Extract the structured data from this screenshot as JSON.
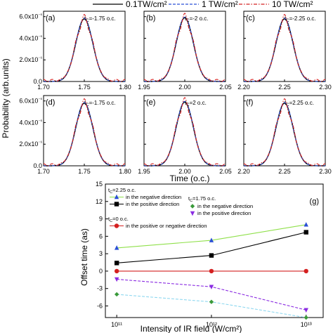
{
  "chart_data": [
    {
      "type": "line",
      "panel_grid": {
        "legend": [
          {
            "name": "0.1TW/cm²",
            "color": "#000000",
            "dash": "solid"
          },
          {
            "name": "1 TW/cm²",
            "color": "#2b4fd6",
            "dash": "dashed"
          },
          {
            "name": "10 TW/cm²",
            "color": "#d42020",
            "dash": "dashdot"
          }
        ],
        "legend_placement": "top",
        "ylabel": "Probability (arb.units)",
        "xlabel": "Time (o.c.)",
        "ylim": [
          0,
          6.5e-06
        ],
        "yticks_top": [
          "0.0",
          "2.0x10⁻⁶",
          "4.0x10⁻⁶",
          "6.0x10⁻⁶"
        ],
        "yticks_bottom": [
          "0.0",
          "2.0x10⁻⁶",
          "4.0x10⁻⁶",
          "6.0x10⁻⁶"
        ]
      },
      "panels": [
        {
          "label": "(a)",
          "annotation": "tC=-1.75 o.c.",
          "center": 1.75,
          "xlim": [
            1.7,
            1.8
          ],
          "xticks": [
            "1.70",
            "1.75",
            "1.80"
          ],
          "peak": 5.8e-06
        },
        {
          "label": "(b)",
          "annotation": "tC=-2 o.c.",
          "center": 2.0,
          "xlim": [
            1.95,
            2.05
          ],
          "xticks": [
            "1.95",
            "2.00",
            "2.05"
          ],
          "peak": 5.9e-06
        },
        {
          "label": "(c)",
          "annotation": "tC=-2.25 o.c.",
          "center": 2.25,
          "xlim": [
            2.2,
            2.3
          ],
          "xticks": [
            "2.20",
            "2.25",
            "2.30"
          ],
          "peak": 5.8e-06
        },
        {
          "label": "(d)",
          "annotation": "tC=-1.75 o.c.",
          "center": 1.75,
          "xlim": [
            1.7,
            1.8
          ],
          "xticks": [
            "1.70",
            "1.75",
            "1.80"
          ],
          "peak": 5.8e-06
        },
        {
          "label": "(e)",
          "annotation": "tC=2 o.c.",
          "center": 2.0,
          "xlim": [
            1.95,
            2.05
          ],
          "xticks": [
            "1.95",
            "2.00",
            "2.05"
          ],
          "peak": 5.9e-06
        },
        {
          "label": "(f)",
          "annotation": "tC=2.25 o.c.",
          "center": 2.25,
          "xlim": [
            2.2,
            2.3
          ],
          "xticks": [
            "2.20",
            "2.25",
            "2.30"
          ],
          "peak": 5.8e-06
        }
      ]
    },
    {
      "type": "line",
      "panel_label": "(g)",
      "xlabel": "Intensity of IR field (W/cm²)",
      "ylabel": "Offset time (as)",
      "xscale": "log",
      "x": [
        100000000000.0,
        1000000000000.0,
        10000000000000.0
      ],
      "xticks": [
        "10¹¹",
        "10¹²",
        "10¹³"
      ],
      "ylim": [
        -8,
        15
      ],
      "yticks": [
        "-6",
        "-3",
        "0",
        "3",
        "6",
        "9",
        "12",
        "15"
      ],
      "annotations": [
        "tC=2.25 o.c.",
        "tC=1.75 o.c.",
        "tC=0 o.c."
      ],
      "series": [
        {
          "name": "in the negative direction",
          "group": "tC=2.25 o.c.",
          "values": [
            4.0,
            5.3,
            8.0
          ],
          "color": "#2b4fd6",
          "line_color": "#8fe04a",
          "marker": "triangle-up"
        },
        {
          "name": "in the positive direction",
          "group": "tC=2.25 o.c.",
          "values": [
            1.4,
            2.7,
            6.7
          ],
          "color": "#000000",
          "line_color": "#000000",
          "marker": "square"
        },
        {
          "name": "in the positive or negative direction",
          "group": "tC=0 o.c.",
          "values": [
            0,
            0,
            0
          ],
          "color": "#d42020",
          "line_color": "#d42020",
          "marker": "circle"
        },
        {
          "name": "in the negative direction",
          "group": "tC=1.75 o.c.",
          "values": [
            -4.0,
            -5.3,
            -8.0
          ],
          "color": "#3a9a3a",
          "line_color": "#8fd8f0",
          "marker": "diamond"
        },
        {
          "name": "in the positive direction",
          "group": "tC=1.75 o.c.",
          "values": [
            -1.4,
            -2.7,
            -6.7
          ],
          "color": "#8a2be2",
          "line_color": "#8a2be2",
          "marker": "triangle-down"
        }
      ],
      "legend_placement": "top"
    }
  ]
}
